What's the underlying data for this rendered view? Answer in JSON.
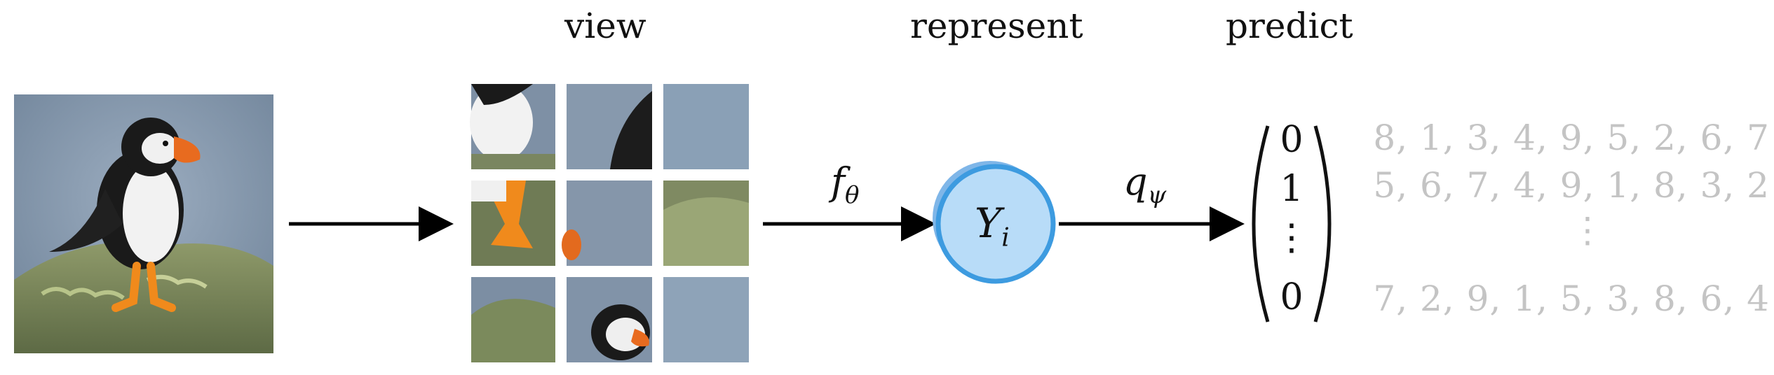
{
  "stages": {
    "view": "view",
    "represent": "represent",
    "predict": "predict"
  },
  "symbols": {
    "encoder": "f",
    "encoder_sub": "θ",
    "head": "q",
    "head_sub": "ψ",
    "node": "Y",
    "node_sub": "i"
  },
  "vector": [
    "0",
    "1",
    "⋮",
    "0"
  ],
  "permutations": [
    "8, 1, 3, 4, 9, 5, 2, 6, 7",
    "5, 6, 7, 4, 9, 1, 8, 3, 2",
    "⋮",
    "7, 2, 9, 1, 5, 3, 8, 6, 4"
  ],
  "colors": {
    "node_fill": "#b8dcf8",
    "node_shadow": "#7fb6e8",
    "node_stroke": "#3d9be0",
    "permutation_text": "#c4c4c4"
  }
}
